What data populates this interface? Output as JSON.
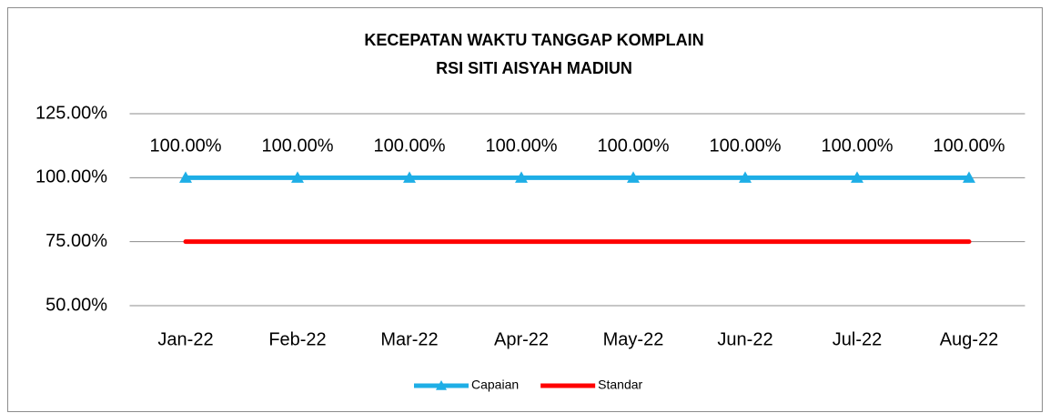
{
  "chart_data": {
    "type": "line",
    "title": "KECEPATAN WAKTU TANGGAP KOMPLAIN",
    "subtitle": "RSI SITI AISYAH MADIUN",
    "categories": [
      "Jan-22",
      "Feb-22",
      "Mar-22",
      "Apr-22",
      "May-22",
      "Jun-22",
      "Jul-22",
      "Aug-22"
    ],
    "series": [
      {
        "name": "Capaian",
        "color": "#1eaee6",
        "marker": "triangle",
        "values": [
          100,
          100,
          100,
          100,
          100,
          100,
          100,
          100
        ],
        "value_labels": [
          "100.00%",
          "100.00%",
          "100.00%",
          "100.00%",
          "100.00%",
          "100.00%",
          "100.00%",
          "100.00%"
        ]
      },
      {
        "name": "Standar",
        "color": "#ff0000",
        "values": [
          75,
          75,
          75,
          75,
          75,
          75,
          75,
          75
        ]
      }
    ],
    "ylim": [
      50,
      125
    ],
    "yticks": [
      {
        "value": 50,
        "label": "50.00%"
      },
      {
        "value": 75,
        "label": "75.00%"
      },
      {
        "value": 100,
        "label": "100.00%"
      },
      {
        "value": 125,
        "label": "125.00%"
      }
    ],
    "grid": true,
    "legend": "bottom"
  }
}
